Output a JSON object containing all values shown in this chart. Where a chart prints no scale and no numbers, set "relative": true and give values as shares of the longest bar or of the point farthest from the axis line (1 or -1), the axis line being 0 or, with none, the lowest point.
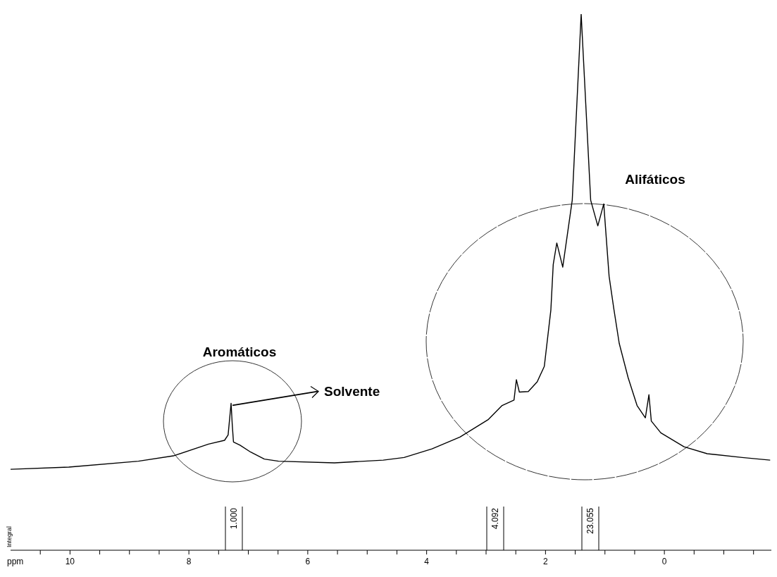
{
  "chart_data": {
    "type": "line",
    "relative": true,
    "xlabel": "ppm",
    "xlim": [
      11.0,
      -1.8
    ],
    "xticks": [
      {
        "value": 10.5,
        "label": null
      },
      10,
      {
        "value": 9.5,
        "label": null
      },
      {
        "value": 9,
        "label": null
      },
      {
        "value": 8.5,
        "label": null
      },
      8,
      {
        "value": 7.5,
        "label": null
      },
      {
        "value": 7,
        "label": null
      },
      {
        "value": 6.5,
        "label": null
      },
      6,
      {
        "value": 5.5,
        "label": null
      },
      {
        "value": 5,
        "label": null
      },
      {
        "value": 4.5,
        "label": null
      },
      4,
      {
        "value": 3.5,
        "label": null
      },
      {
        "value": 3,
        "label": null
      },
      {
        "value": 2.5,
        "label": null
      },
      2,
      {
        "value": 1.5,
        "label": null
      },
      {
        "value": 1,
        "label": null
      },
      {
        "value": 0.5,
        "label": null
      },
      0,
      {
        "value": -0.5,
        "label": null
      },
      {
        "value": -1,
        "label": null
      },
      {
        "value": -1.5,
        "label": null
      }
    ],
    "marker": "none",
    "line_style": "solid",
    "tick_labels": "x",
    "series": [
      {
        "color": "#000000",
        "x": [
          11.0,
          10.02,
          8.85,
          8.26,
          7.67,
          7.4,
          7.34,
          7.29,
          7.27,
          7.25,
          7.14,
          6.96,
          6.73,
          6.49,
          5.55,
          4.73,
          4.38,
          3.91,
          3.44,
          2.96,
          2.73,
          2.53,
          2.49,
          2.44,
          2.29,
          2.14,
          2.02,
          1.91,
          1.87,
          1.81,
          1.71,
          1.55,
          1.4,
          1.24,
          1.12,
          1.02,
          0.93,
          0.85,
          0.76,
          0.61,
          0.46,
          0.32,
          0.26,
          0.22,
          0.06,
          -0.33,
          -0.72,
          -1.31,
          -1.78
        ],
        "values": [
          0.151,
          0.155,
          0.166,
          0.176,
          0.198,
          0.205,
          0.215,
          0.274,
          0.234,
          0.202,
          0.196,
          0.183,
          0.17,
          0.166,
          0.163,
          0.168,
          0.173,
          0.189,
          0.211,
          0.244,
          0.27,
          0.28,
          0.318,
          0.295,
          0.296,
          0.314,
          0.343,
          0.448,
          0.533,
          0.573,
          0.528,
          0.653,
          1.0,
          0.653,
          0.605,
          0.646,
          0.511,
          0.45,
          0.386,
          0.322,
          0.27,
          0.247,
          0.29,
          0.241,
          0.219,
          0.193,
          0.18,
          0.173,
          0.168
        ]
      }
    ],
    "annotations": [
      "Aromáticos",
      "Alifáticos",
      {
        "text": "Solvente",
        "x": 7.29,
        "y": 0.274
      },
      "Integral",
      "1.000",
      "4.092",
      "23.055"
    ]
  }
}
